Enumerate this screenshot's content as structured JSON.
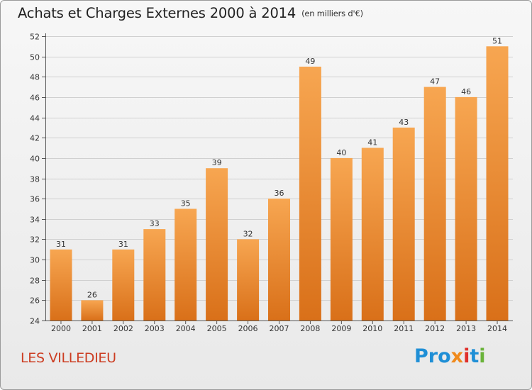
{
  "header": {
    "title": "Achats et Charges Externes 2000 à 2014",
    "unit": "(en milliers d'€)"
  },
  "footer": {
    "place": "LES VILLEDIEU",
    "logo": [
      "Pro",
      "x",
      "i",
      "t",
      "i"
    ]
  },
  "colors": {
    "bar_light": "#f7a651",
    "bar_dark": "#d97019",
    "grid": "#d0d0d0",
    "place_text": "#cc3d22"
  },
  "chart_data": {
    "type": "bar",
    "title": "Achats et Charges Externes 2000 à 2014",
    "subtitle": "(en milliers d'€)",
    "categories": [
      "2000",
      "2001",
      "2002",
      "2003",
      "2004",
      "2005",
      "2006",
      "2007",
      "2008",
      "2009",
      "2010",
      "2011",
      "2012",
      "2013",
      "2014"
    ],
    "values": [
      31,
      26,
      31,
      33,
      35,
      39,
      32,
      36,
      49,
      40,
      41,
      43,
      47,
      46,
      51
    ],
    "ylim": [
      24,
      52
    ],
    "yticks": [
      24,
      26,
      28,
      30,
      32,
      34,
      36,
      38,
      40,
      42,
      44,
      46,
      48,
      50,
      52
    ],
    "grid": true,
    "data_labels": true
  }
}
